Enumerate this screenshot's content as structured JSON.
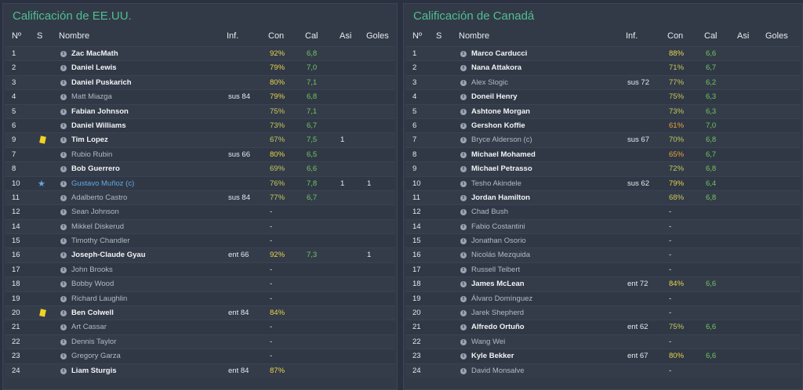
{
  "colors": {
    "con_high": "#e8d54a",
    "con_mid": "#c8c85a",
    "con_low": "#e6a43a",
    "cal": "#72c65b",
    "title": "#4fbf8f",
    "captain": "#62a9e4"
  },
  "left": {
    "title": "Calificación de EE.UU.",
    "headers": {
      "num": "Nº",
      "s": "S",
      "name": "Nombre",
      "inf": "Inf.",
      "con": "Con",
      "cal": "Cal",
      "asi": "Asi",
      "goles": "Goles"
    },
    "rows": [
      {
        "num": "1",
        "s": "",
        "name": "Zac MacMath",
        "style": "bold",
        "inf": "",
        "con": "92%",
        "cal": "6,8",
        "asi": "",
        "goles": ""
      },
      {
        "num": "2",
        "s": "",
        "name": "Daniel Lewis",
        "style": "bold",
        "inf": "",
        "con": "79%",
        "cal": "7,0",
        "asi": "",
        "goles": ""
      },
      {
        "num": "3",
        "s": "",
        "name": "Daniel Puskarich",
        "style": "bold",
        "inf": "",
        "con": "80%",
        "cal": "7,1",
        "asi": "",
        "goles": ""
      },
      {
        "num": "4",
        "s": "",
        "name": "Matt Miazga",
        "style": "dim",
        "inf": "sus 84",
        "con": "79%",
        "cal": "6,8",
        "asi": "",
        "goles": ""
      },
      {
        "num": "5",
        "s": "",
        "name": "Fabian Johnson",
        "style": "bold",
        "inf": "",
        "con": "75%",
        "cal": "7,1",
        "asi": "",
        "goles": ""
      },
      {
        "num": "6",
        "s": "",
        "name": "Daniel Williams",
        "style": "bold",
        "inf": "",
        "con": "73%",
        "cal": "6,7",
        "asi": "",
        "goles": ""
      },
      {
        "num": "9",
        "s": "yellow-card",
        "name": "Tim Lopez",
        "style": "bold",
        "inf": "",
        "con": "67%",
        "cal": "7,5",
        "asi": "1",
        "goles": ""
      },
      {
        "num": "7",
        "s": "",
        "name": "Rubio Rubin",
        "style": "dim",
        "inf": "sus 66",
        "con": "80%",
        "cal": "6,5",
        "asi": "",
        "goles": ""
      },
      {
        "num": "8",
        "s": "",
        "name": "Bob Guerrero",
        "style": "bold",
        "inf": "",
        "con": "69%",
        "cal": "6,6",
        "asi": "",
        "goles": ""
      },
      {
        "num": "10",
        "s": "star",
        "name": "Gustavo Muñoz (c)",
        "style": "blue",
        "inf": "",
        "con": "76%",
        "cal": "7,8",
        "asi": "1",
        "goles": "1"
      },
      {
        "num": "11",
        "s": "",
        "name": "Adalberto Castro",
        "style": "dim",
        "inf": "sus 84",
        "con": "77%",
        "cal": "6,7",
        "asi": "",
        "goles": ""
      },
      {
        "num": "12",
        "s": "",
        "name": "Sean Johnson",
        "style": "dim",
        "inf": "",
        "con": "-",
        "cal": "",
        "asi": "",
        "goles": ""
      },
      {
        "num": "14",
        "s": "",
        "name": "Mikkel Diskerud",
        "style": "dim",
        "inf": "",
        "con": "-",
        "cal": "",
        "asi": "",
        "goles": ""
      },
      {
        "num": "15",
        "s": "",
        "name": "Timothy Chandler",
        "style": "dim",
        "inf": "",
        "con": "-",
        "cal": "",
        "asi": "",
        "goles": ""
      },
      {
        "num": "16",
        "s": "",
        "name": "Joseph-Claude Gyau",
        "style": "bold",
        "inf": "ent 66",
        "con": "92%",
        "cal": "7,3",
        "asi": "",
        "goles": "1"
      },
      {
        "num": "17",
        "s": "",
        "name": "John Brooks",
        "style": "dim",
        "inf": "",
        "con": "-",
        "cal": "",
        "asi": "",
        "goles": ""
      },
      {
        "num": "18",
        "s": "",
        "name": "Bobby Wood",
        "style": "dim",
        "inf": "",
        "con": "-",
        "cal": "",
        "asi": "",
        "goles": ""
      },
      {
        "num": "19",
        "s": "",
        "name": "Richard Laughlin",
        "style": "dim",
        "inf": "",
        "con": "-",
        "cal": "",
        "asi": "",
        "goles": ""
      },
      {
        "num": "20",
        "s": "yellow-card",
        "name": "Ben Colwell",
        "style": "bold",
        "inf": "ent 84",
        "con": "84%",
        "cal": "",
        "asi": "",
        "goles": ""
      },
      {
        "num": "21",
        "s": "",
        "name": "Art Cassar",
        "style": "dim",
        "inf": "",
        "con": "-",
        "cal": "",
        "asi": "",
        "goles": ""
      },
      {
        "num": "22",
        "s": "",
        "name": "Dennis Taylor",
        "style": "dim",
        "inf": "",
        "con": "-",
        "cal": "",
        "asi": "",
        "goles": ""
      },
      {
        "num": "23",
        "s": "",
        "name": "Gregory Garza",
        "style": "dim",
        "inf": "",
        "con": "-",
        "cal": "",
        "asi": "",
        "goles": ""
      },
      {
        "num": "24",
        "s": "",
        "name": "Liam Sturgis",
        "style": "bold",
        "inf": "ent 84",
        "con": "87%",
        "cal": "",
        "asi": "",
        "goles": ""
      }
    ]
  },
  "right": {
    "title": "Calificación de Canadá",
    "headers": {
      "num": "Nº",
      "s": "S",
      "name": "Nombre",
      "inf": "Inf.",
      "con": "Con",
      "cal": "Cal",
      "asi": "Asi",
      "goles": "Goles"
    },
    "rows": [
      {
        "num": "1",
        "s": "",
        "name": "Marco Carducci",
        "style": "bold",
        "inf": "",
        "con": "88%",
        "cal": "6,6",
        "asi": "",
        "goles": ""
      },
      {
        "num": "2",
        "s": "",
        "name": "Nana Attakora",
        "style": "bold",
        "inf": "",
        "con": "71%",
        "cal": "6,7",
        "asi": "",
        "goles": ""
      },
      {
        "num": "3",
        "s": "",
        "name": "Alex Slogic",
        "style": "dim",
        "inf": "sus 72",
        "con": "77%",
        "cal": "6,2",
        "asi": "",
        "goles": ""
      },
      {
        "num": "4",
        "s": "",
        "name": "Doneil Henry",
        "style": "bold",
        "inf": "",
        "con": "75%",
        "cal": "6,3",
        "asi": "",
        "goles": ""
      },
      {
        "num": "5",
        "s": "",
        "name": "Ashtone Morgan",
        "style": "bold",
        "inf": "",
        "con": "73%",
        "cal": "6,3",
        "asi": "",
        "goles": ""
      },
      {
        "num": "6",
        "s": "",
        "name": "Gershon Koffie",
        "style": "bold",
        "inf": "",
        "con": "61%",
        "cal": "7,0",
        "asi": "",
        "goles": ""
      },
      {
        "num": "7",
        "s": "",
        "name": "Bryce Alderson (c)",
        "style": "dim",
        "inf": "sus 67",
        "con": "70%",
        "cal": "6,8",
        "asi": "",
        "goles": ""
      },
      {
        "num": "8",
        "s": "",
        "name": "Michael Mohamed",
        "style": "bold",
        "inf": "",
        "con": "65%",
        "cal": "6,7",
        "asi": "",
        "goles": ""
      },
      {
        "num": "9",
        "s": "",
        "name": "Michael Petrasso",
        "style": "bold",
        "inf": "",
        "con": "72%",
        "cal": "6,8",
        "asi": "",
        "goles": ""
      },
      {
        "num": "10",
        "s": "",
        "name": "Tesho Akindele",
        "style": "dim",
        "inf": "sus 62",
        "con": "79%",
        "cal": "6,4",
        "asi": "",
        "goles": ""
      },
      {
        "num": "11",
        "s": "",
        "name": "Jordan Hamilton",
        "style": "bold",
        "inf": "",
        "con": "68%",
        "cal": "6,8",
        "asi": "",
        "goles": ""
      },
      {
        "num": "12",
        "s": "",
        "name": "Chad Bush",
        "style": "dim",
        "inf": "",
        "con": "-",
        "cal": "",
        "asi": "",
        "goles": ""
      },
      {
        "num": "14",
        "s": "",
        "name": "Fabio Costantini",
        "style": "dim",
        "inf": "",
        "con": "-",
        "cal": "",
        "asi": "",
        "goles": ""
      },
      {
        "num": "15",
        "s": "",
        "name": "Jonathan Osorio",
        "style": "dim",
        "inf": "",
        "con": "-",
        "cal": "",
        "asi": "",
        "goles": ""
      },
      {
        "num": "16",
        "s": "",
        "name": "Nicolás Mezquida",
        "style": "dim",
        "inf": "",
        "con": "-",
        "cal": "",
        "asi": "",
        "goles": ""
      },
      {
        "num": "17",
        "s": "",
        "name": "Russell Teibert",
        "style": "dim",
        "inf": "",
        "con": "-",
        "cal": "",
        "asi": "",
        "goles": ""
      },
      {
        "num": "18",
        "s": "",
        "name": "James McLean",
        "style": "bold",
        "inf": "ent 72",
        "con": "84%",
        "cal": "6,6",
        "asi": "",
        "goles": ""
      },
      {
        "num": "19",
        "s": "",
        "name": "Álvaro Domínguez",
        "style": "dim",
        "inf": "",
        "con": "-",
        "cal": "",
        "asi": "",
        "goles": ""
      },
      {
        "num": "20",
        "s": "",
        "name": "Jarek Shepherd",
        "style": "dim",
        "inf": "",
        "con": "-",
        "cal": "",
        "asi": "",
        "goles": ""
      },
      {
        "num": "21",
        "s": "",
        "name": "Alfredo Ortuño",
        "style": "bold",
        "inf": "ent 62",
        "con": "75%",
        "cal": "6,6",
        "asi": "",
        "goles": ""
      },
      {
        "num": "22",
        "s": "",
        "name": "Wang Wei",
        "style": "dim",
        "inf": "",
        "con": "-",
        "cal": "",
        "asi": "",
        "goles": ""
      },
      {
        "num": "23",
        "s": "",
        "name": "Kyle Bekker",
        "style": "bold",
        "inf": "ent 67",
        "con": "80%",
        "cal": "6,6",
        "asi": "",
        "goles": ""
      },
      {
        "num": "24",
        "s": "",
        "name": "David Monsalve",
        "style": "dim",
        "inf": "",
        "con": "-",
        "cal": "",
        "asi": "",
        "goles": ""
      }
    ]
  }
}
